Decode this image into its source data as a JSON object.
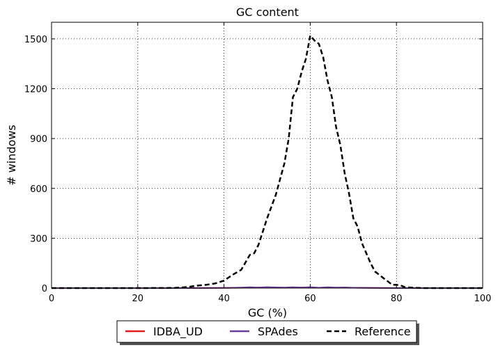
{
  "chart_data": {
    "type": "line",
    "title": "GC content",
    "xlabel": "GC (%)",
    "ylabel": "# windows",
    "xlim": [
      0,
      100
    ],
    "ylim": [
      0,
      1600
    ],
    "xticks": [
      0,
      20,
      40,
      60,
      80,
      100
    ],
    "yticks": [
      0,
      300,
      600,
      900,
      1200,
      1500
    ],
    "grid": true,
    "legend_position": "bottom-center",
    "series": [
      {
        "name": "IDBA_UD",
        "color": "#e41a1c",
        "style": "solid",
        "x": [
          0,
          10,
          20,
          30,
          40,
          45,
          48,
          50,
          55,
          58,
          60,
          62,
          65,
          68,
          70,
          75,
          80,
          90,
          100
        ],
        "y": [
          0,
          0,
          0,
          0,
          1,
          2,
          3,
          3,
          2,
          3,
          3,
          2,
          2,
          2,
          2,
          1,
          0,
          0,
          0
        ]
      },
      {
        "name": "SPAdes",
        "color": "#6a3d9a",
        "style": "solid",
        "x": [
          0,
          10,
          20,
          30,
          40,
          44,
          46,
          48,
          50,
          52,
          54,
          56,
          58,
          60,
          62,
          64,
          66,
          68,
          70,
          75,
          80,
          90,
          100
        ],
        "y": [
          0,
          0,
          0,
          0,
          1,
          3,
          5,
          3,
          6,
          4,
          3,
          5,
          3,
          6,
          2,
          5,
          3,
          4,
          2,
          1,
          0,
          0,
          0
        ]
      },
      {
        "name": "Reference",
        "color": "#000000",
        "style": "dashed",
        "x": [
          0,
          10,
          20,
          28,
          30,
          32,
          34,
          36,
          38,
          40,
          42,
          44,
          46,
          47,
          48,
          50,
          52,
          54,
          55,
          56,
          57,
          58,
          59,
          60,
          61,
          62,
          63,
          64,
          65,
          66,
          67,
          68,
          69,
          70,
          71,
          72,
          73,
          74,
          75,
          76,
          77,
          78,
          79,
          80,
          81,
          82,
          84,
          86,
          90,
          100
        ],
        "y": [
          0,
          0,
          0,
          1,
          3,
          8,
          15,
          20,
          28,
          45,
          80,
          110,
          200,
          210,
          260,
          420,
          560,
          750,
          900,
          1150,
          1200,
          1300,
          1380,
          1520,
          1490,
          1470,
          1390,
          1250,
          1150,
          970,
          860,
          690,
          570,
          420,
          370,
          270,
          210,
          150,
          100,
          80,
          60,
          40,
          20,
          20,
          15,
          5,
          2,
          0,
          0,
          0
        ]
      }
    ]
  }
}
